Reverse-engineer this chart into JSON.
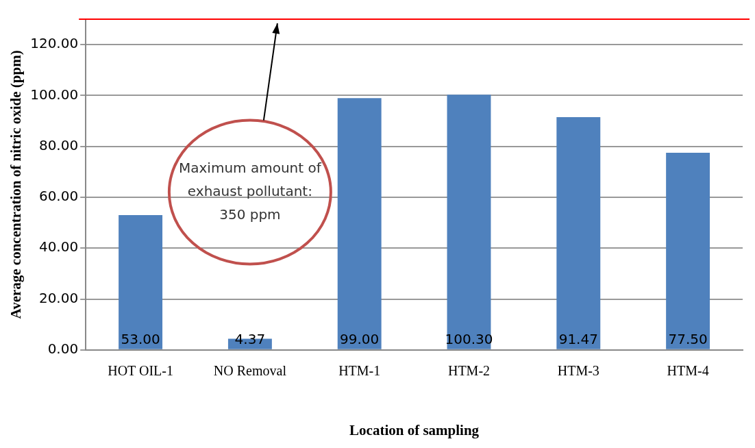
{
  "chart_data": {
    "type": "bar",
    "xlabel": "Location of sampling",
    "ylabel": "Average concentration of nitric oxide (ppm)",
    "categories": [
      "HOT OIL-1",
      "NO Removal",
      "HTM-1",
      "HTM-2",
      "HTM-3",
      "HTM-4"
    ],
    "values": [
      53.0,
      4.37,
      99.0,
      100.3,
      91.47,
      77.5
    ],
    "value_labels": [
      "53.00",
      "4.37",
      "99.00",
      "100.30",
      "91.47",
      "77.50"
    ],
    "color": "#4f81bd",
    "ylim": [
      0,
      130
    ],
    "yticks": [
      {
        "value": 0,
        "label": "0.00"
      },
      {
        "value": 20,
        "label": "20.00"
      },
      {
        "value": 40,
        "label": "40.00"
      },
      {
        "value": 60,
        "label": "60.00"
      },
      {
        "value": 80,
        "label": "80.00"
      },
      {
        "value": 100,
        "label": "100.00"
      },
      {
        "value": 120,
        "label": "120.00"
      }
    ],
    "grid": "y",
    "annotations": [
      "Maximum amount of exhaust pollutant: 350 ppm"
    ],
    "ref_lines": [
      {
        "axis": "y",
        "value": 130,
        "color": "#ff0000"
      }
    ]
  }
}
